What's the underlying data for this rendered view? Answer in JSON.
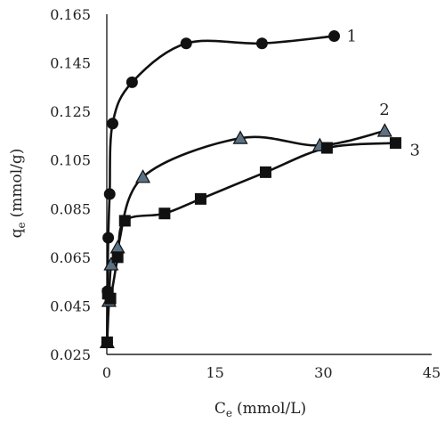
{
  "chart_data": {
    "type": "scatter",
    "title": "",
    "xlabel": "C",
    "xlabel_sub": "e",
    "xlabel_unit": "(mmol/L)",
    "ylabel": "q",
    "ylabel_sub": "e",
    "ylabel_unit": "(mmol/g)",
    "xlim": [
      0,
      45
    ],
    "ylim": [
      0.025,
      0.165
    ],
    "x_ticks": [
      0,
      15,
      30,
      45
    ],
    "y_ticks": [
      0.025,
      0.045,
      0.065,
      0.085,
      0.105,
      0.125,
      0.145,
      0.165
    ],
    "y_tick_labels": [
      "0.025",
      "0.045",
      "0.065",
      "0.085",
      "0.105",
      "0.125",
      "0.145",
      "0.165"
    ],
    "x_tick_labels": [
      "0",
      "15",
      "30",
      "45"
    ],
    "grid": false,
    "series": [
      {
        "name": "1",
        "marker": "circle",
        "color": "#111111",
        "x": [
          0.05,
          0.1,
          0.2,
          0.4,
          0.8,
          3.5,
          11.0,
          21.5,
          31.5
        ],
        "y": [
          0.03,
          0.051,
          0.073,
          0.091,
          0.12,
          0.137,
          0.153,
          0.153,
          0.156
        ]
      },
      {
        "name": "2",
        "marker": "triangle",
        "color": "#5b7184",
        "x": [
          0.05,
          0.3,
          0.6,
          1.5,
          5.0,
          18.5,
          29.5,
          38.5
        ],
        "y": [
          0.03,
          0.047,
          0.062,
          0.069,
          0.098,
          0.114,
          0.111,
          0.117
        ]
      },
      {
        "name": "3",
        "marker": "square",
        "color": "#111111",
        "x": [
          0.05,
          0.15,
          0.5,
          1.5,
          2.5,
          8.0,
          13.0,
          22.0,
          30.5,
          40.0
        ],
        "y": [
          0.03,
          0.05,
          0.048,
          0.065,
          0.08,
          0.083,
          0.089,
          0.1,
          0.11,
          0.112
        ]
      }
    ]
  }
}
